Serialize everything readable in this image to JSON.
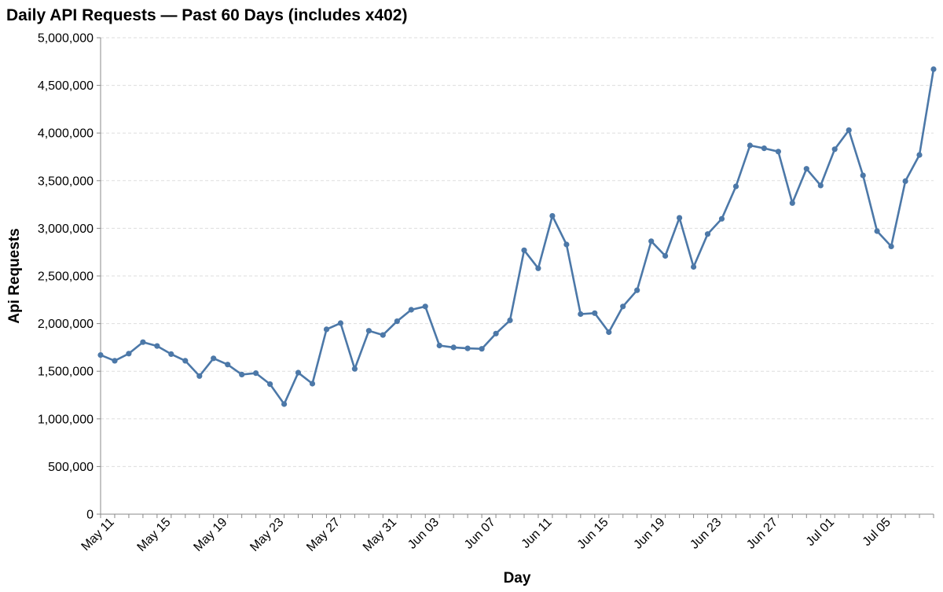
{
  "chart_data": {
    "type": "line",
    "title": "Daily API Requests — Past 60 Days (includes x402)",
    "xlabel": "Day",
    "ylabel": "Api Requests",
    "color": "#4c78a8",
    "grid": true,
    "ylim": [
      0,
      5000000
    ],
    "xlim": [
      "2025-05-10",
      "2025-07-08"
    ],
    "y_ticks": [
      0,
      500000,
      1000000,
      1500000,
      2000000,
      2500000,
      3000000,
      3500000,
      4000000,
      4500000,
      5000000
    ],
    "y_tick_labels": [
      "0",
      "500,000",
      "1,000,000",
      "1,500,000",
      "2,000,000",
      "2,500,000",
      "3,000,000",
      "3,500,000",
      "4,000,000",
      "4,500,000",
      "5,000,000"
    ],
    "x_ticks": [
      "2025-05-11",
      "2025-05-15",
      "2025-05-19",
      "2025-05-23",
      "2025-05-27",
      "2025-05-31",
      "2025-06-03",
      "2025-06-07",
      "2025-06-11",
      "2025-06-15",
      "2025-06-19",
      "2025-06-23",
      "2025-06-27",
      "2025-07-01",
      "2025-07-05"
    ],
    "x_tick_labels": [
      "May 11",
      "May 15",
      "May 19",
      "May 23",
      "May 27",
      "May 31",
      "Jun 03",
      "Jun 07",
      "Jun 11",
      "Jun 15",
      "Jun 19",
      "Jun 23",
      "Jun 27",
      "Jul 01",
      "Jul 05"
    ],
    "x": [
      "2025-05-10",
      "2025-05-11",
      "2025-05-12",
      "2025-05-13",
      "2025-05-14",
      "2025-05-15",
      "2025-05-16",
      "2025-05-17",
      "2025-05-18",
      "2025-05-19",
      "2025-05-20",
      "2025-05-21",
      "2025-05-22",
      "2025-05-23",
      "2025-05-24",
      "2025-05-25",
      "2025-05-26",
      "2025-05-27",
      "2025-05-28",
      "2025-05-29",
      "2025-05-30",
      "2025-05-31",
      "2025-06-01",
      "2025-06-02",
      "2025-06-03",
      "2025-06-04",
      "2025-06-05",
      "2025-06-06",
      "2025-06-07",
      "2025-06-08",
      "2025-06-09",
      "2025-06-10",
      "2025-06-11",
      "2025-06-12",
      "2025-06-13",
      "2025-06-14",
      "2025-06-15",
      "2025-06-16",
      "2025-06-17",
      "2025-06-18",
      "2025-06-19",
      "2025-06-20",
      "2025-06-21",
      "2025-06-22",
      "2025-06-23",
      "2025-06-24",
      "2025-06-25",
      "2025-06-26",
      "2025-06-27",
      "2025-06-28",
      "2025-06-29",
      "2025-06-30",
      "2025-07-01",
      "2025-07-02",
      "2025-07-03",
      "2025-07-04",
      "2025-07-05",
      "2025-07-06",
      "2025-07-07",
      "2025-07-08"
    ],
    "y": [
      1670000,
      1610000,
      1685000,
      1805000,
      1765000,
      1680000,
      1610000,
      1450000,
      1635000,
      1570000,
      1465000,
      1480000,
      1365000,
      1155000,
      1485000,
      1370000,
      1940000,
      2005000,
      1525000,
      1925000,
      1880000,
      2025000,
      2145000,
      2180000,
      1770000,
      1750000,
      1740000,
      1735000,
      1895000,
      2035000,
      2770000,
      2580000,
      3130000,
      2830000,
      2100000,
      2110000,
      1910000,
      2180000,
      2350000,
      2865000,
      2710000,
      3110000,
      2595000,
      2940000,
      3100000,
      3440000,
      3870000,
      3840000,
      3805000,
      3265000,
      3625000,
      3450000,
      3830000,
      4030000,
      3555000,
      2970000,
      2810000,
      3495000,
      3770000,
      4670000
    ]
  }
}
